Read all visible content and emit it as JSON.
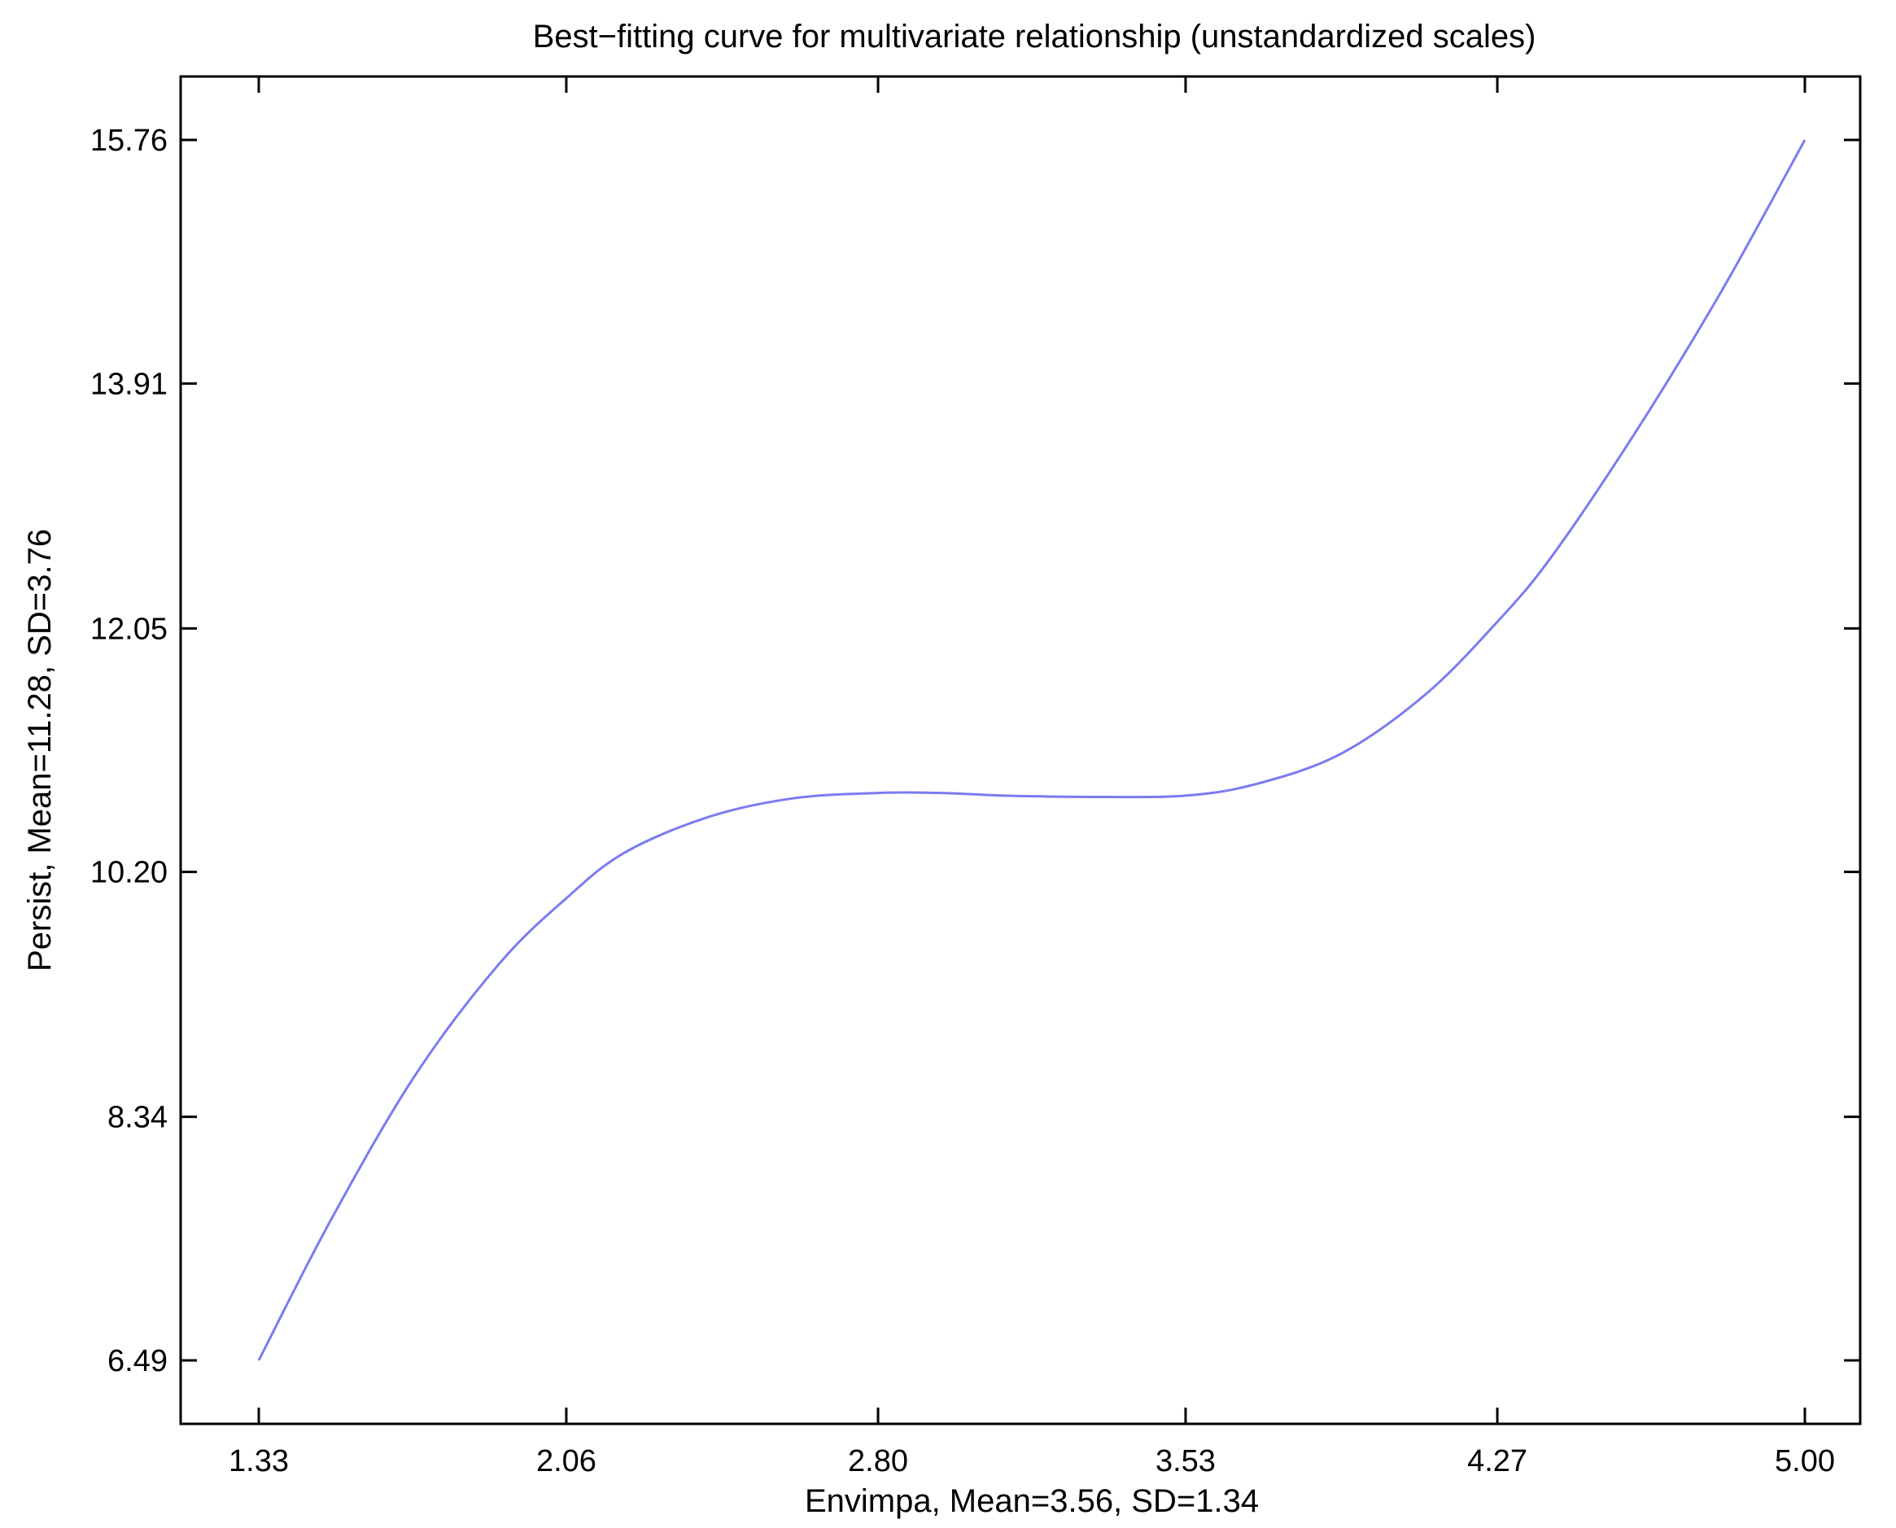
{
  "chart_data": {
    "type": "line",
    "title": "Best−fitting curve for multivariate relationship (unstandardized scales)",
    "xlabel": "Envimpa, Mean=3.56, SD=1.34",
    "ylabel": "Persist, Mean=11.28, SD=3.76",
    "x_ticks": [
      "1.33",
      "2.06",
      "2.80",
      "3.53",
      "4.27",
      "5.00"
    ],
    "y_ticks": [
      "6.49",
      "8.34",
      "10.20",
      "12.05",
      "13.91",
      "15.76"
    ],
    "xlim": [
      1.33,
      5.0
    ],
    "ylim": [
      6.49,
      15.76
    ],
    "grid": false,
    "colors": {
      "line": "#7b7bf2",
      "frame": "#000000"
    },
    "series": [
      {
        "x": [
          1.33,
          1.5,
          1.7,
          1.9,
          2.06,
          2.2,
          2.4,
          2.6,
          2.8,
          2.95,
          3.1,
          3.3,
          3.53,
          3.7,
          3.9,
          4.1,
          4.27,
          4.4,
          4.6,
          4.8,
          5.0
        ],
        "y": [
          6.49,
          7.55,
          8.65,
          9.5,
          10.0,
          10.35,
          10.62,
          10.76,
          10.8,
          10.8,
          10.78,
          10.77,
          10.78,
          10.87,
          11.1,
          11.55,
          12.1,
          12.6,
          13.55,
          14.6,
          15.76
        ]
      }
    ]
  }
}
